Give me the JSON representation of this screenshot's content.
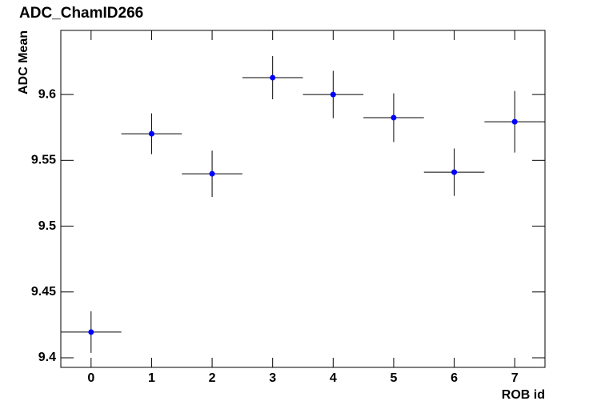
{
  "chart_data": {
    "type": "errorbar",
    "title": "ADC_ChamID266",
    "x_label": "ROB id",
    "y_label": "ADC Mean",
    "x": [
      0,
      1,
      2,
      3,
      4,
      5,
      6,
      7
    ],
    "values": [
      9.4195,
      9.5702,
      9.5398,
      9.6128,
      9.6,
      9.5824,
      9.541,
      9.5793
    ],
    "errors": [
      0.0158,
      0.0155,
      0.0176,
      0.0164,
      0.018,
      0.0185,
      0.018,
      0.0234
    ],
    "x_errors": [
      0.5,
      0.5,
      0.5,
      0.5,
      0.5,
      0.5,
      0.5,
      0.5
    ],
    "color": "#0000ff",
    "xlim": [
      -0.5,
      7.5
    ],
    "xticks": [
      0,
      1,
      2,
      3,
      4,
      5,
      6,
      7
    ],
    "ylim": [
      9.3927,
      9.6487
    ],
    "yticks": [
      9.4,
      9.45,
      9.5,
      9.55,
      9.6
    ]
  }
}
